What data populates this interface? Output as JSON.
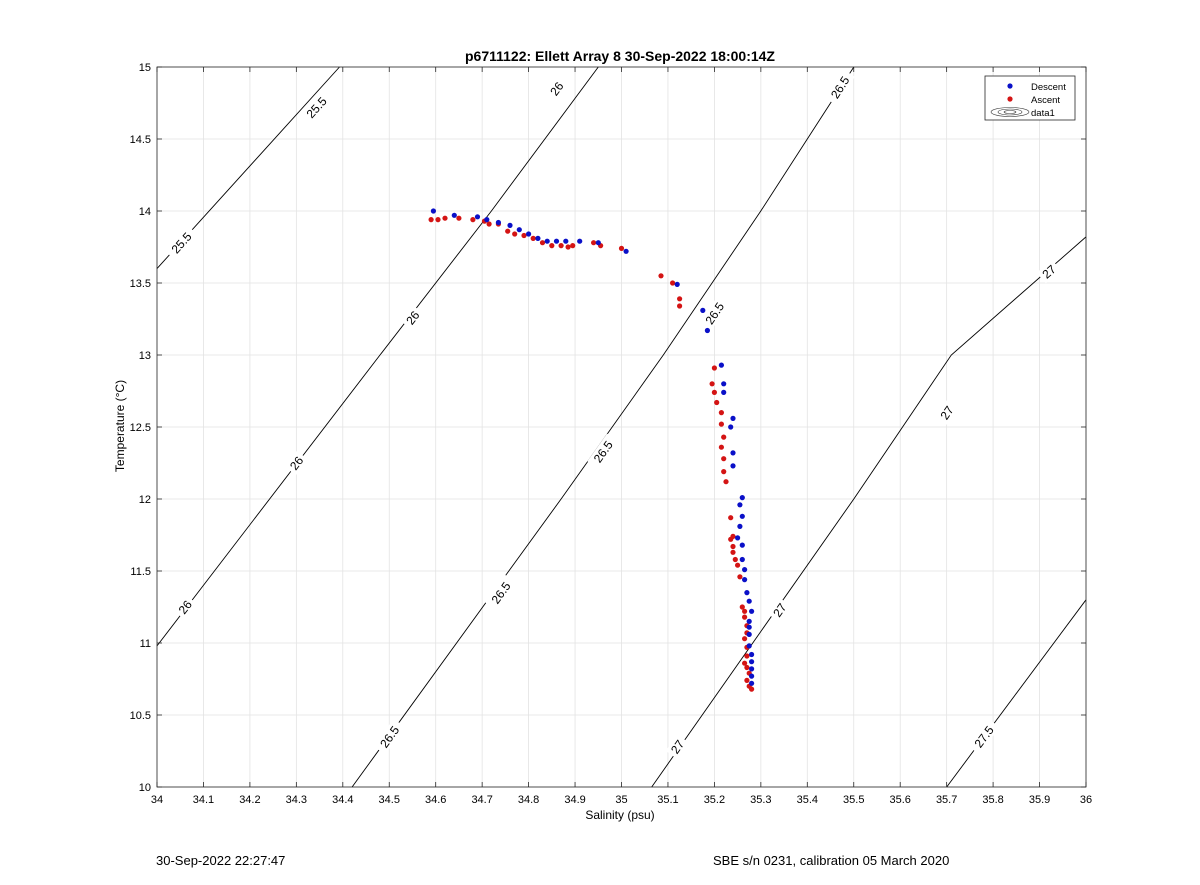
{
  "chart_data": {
    "type": "scatter",
    "title": "p6711122: Ellett Array 8 30-Sep-2022 18:00:14Z",
    "xlabel": "Salinity (psu)",
    "ylabel": "Temperature (°C)",
    "xlim": [
      34,
      36
    ],
    "ylim": [
      10,
      15
    ],
    "xticks": [
      "34",
      "34.1",
      "34.2",
      "34.3",
      "34.4",
      "34.5",
      "34.6",
      "34.7",
      "34.8",
      "34.9",
      "35",
      "35.1",
      "35.2",
      "35.3",
      "35.4",
      "35.5",
      "35.6",
      "35.7",
      "35.8",
      "35.9",
      "36"
    ],
    "yticks": [
      "10",
      "10.5",
      "11",
      "11.5",
      "12",
      "12.5",
      "13",
      "13.5",
      "14",
      "14.5",
      "15"
    ],
    "grid": true,
    "legend_position": "top-right",
    "legend": [
      "Descent",
      "Ascent",
      "data1"
    ],
    "colors": {
      "descent": "#0a10c8",
      "ascent": "#d41414",
      "contour": "#000000",
      "grid": "#e3e3e3"
    },
    "series": [
      {
        "name": "Descent",
        "points": [
          [
            34.595,
            14.0
          ],
          [
            34.64,
            13.97
          ],
          [
            34.69,
            13.96
          ],
          [
            34.71,
            13.94
          ],
          [
            34.735,
            13.92
          ],
          [
            34.76,
            13.9
          ],
          [
            34.78,
            13.87
          ],
          [
            34.8,
            13.84
          ],
          [
            34.82,
            13.81
          ],
          [
            34.84,
            13.79
          ],
          [
            34.86,
            13.79
          ],
          [
            34.88,
            13.79
          ],
          [
            34.91,
            13.79
          ],
          [
            34.95,
            13.78
          ],
          [
            35.01,
            13.72
          ],
          [
            35.12,
            13.49
          ],
          [
            35.175,
            13.31
          ],
          [
            35.185,
            13.17
          ],
          [
            35.215,
            12.93
          ],
          [
            35.22,
            12.8
          ],
          [
            35.22,
            12.74
          ],
          [
            35.24,
            12.56
          ],
          [
            35.235,
            12.5
          ],
          [
            35.24,
            12.32
          ],
          [
            35.24,
            12.23
          ],
          [
            35.26,
            12.01
          ],
          [
            35.255,
            11.96
          ],
          [
            35.26,
            11.88
          ],
          [
            35.255,
            11.81
          ],
          [
            35.25,
            11.73
          ],
          [
            35.26,
            11.68
          ],
          [
            35.26,
            11.58
          ],
          [
            35.265,
            11.51
          ],
          [
            35.265,
            11.44
          ],
          [
            35.27,
            11.35
          ],
          [
            35.275,
            11.29
          ],
          [
            35.28,
            11.22
          ],
          [
            35.275,
            11.15
          ],
          [
            35.275,
            11.11
          ],
          [
            35.275,
            11.06
          ],
          [
            35.275,
            10.98
          ],
          [
            35.28,
            10.92
          ],
          [
            35.28,
            10.87
          ],
          [
            35.28,
            10.82
          ],
          [
            35.28,
            10.77
          ],
          [
            35.28,
            10.72
          ]
        ]
      },
      {
        "name": "Ascent",
        "points": [
          [
            34.59,
            13.94
          ],
          [
            34.605,
            13.94
          ],
          [
            34.62,
            13.95
          ],
          [
            34.65,
            13.95
          ],
          [
            34.68,
            13.94
          ],
          [
            34.705,
            13.93
          ],
          [
            34.715,
            13.91
          ],
          [
            34.735,
            13.91
          ],
          [
            34.755,
            13.86
          ],
          [
            34.77,
            13.84
          ],
          [
            34.79,
            13.83
          ],
          [
            34.81,
            13.81
          ],
          [
            34.83,
            13.78
          ],
          [
            34.85,
            13.76
          ],
          [
            34.87,
            13.76
          ],
          [
            34.885,
            13.75
          ],
          [
            34.895,
            13.76
          ],
          [
            34.94,
            13.78
          ],
          [
            34.955,
            13.76
          ],
          [
            35.0,
            13.74
          ],
          [
            35.085,
            13.55
          ],
          [
            35.11,
            13.5
          ],
          [
            35.125,
            13.39
          ],
          [
            35.125,
            13.34
          ],
          [
            35.2,
            12.91
          ],
          [
            35.195,
            12.8
          ],
          [
            35.2,
            12.74
          ],
          [
            35.205,
            12.67
          ],
          [
            35.215,
            12.6
          ],
          [
            35.215,
            12.52
          ],
          [
            35.22,
            12.43
          ],
          [
            35.215,
            12.36
          ],
          [
            35.22,
            12.28
          ],
          [
            35.22,
            12.19
          ],
          [
            35.225,
            12.12
          ],
          [
            35.235,
            11.87
          ],
          [
            35.24,
            11.74
          ],
          [
            35.235,
            11.72
          ],
          [
            35.24,
            11.67
          ],
          [
            35.24,
            11.63
          ],
          [
            35.245,
            11.58
          ],
          [
            35.25,
            11.54
          ],
          [
            35.255,
            11.46
          ],
          [
            35.26,
            11.25
          ],
          [
            35.265,
            11.22
          ],
          [
            35.265,
            11.18
          ],
          [
            35.27,
            11.12
          ],
          [
            35.27,
            11.07
          ],
          [
            35.265,
            11.03
          ],
          [
            35.27,
            10.97
          ],
          [
            35.27,
            10.91
          ],
          [
            35.265,
            10.86
          ],
          [
            35.27,
            10.83
          ],
          [
            35.275,
            10.79
          ],
          [
            35.27,
            10.74
          ],
          [
            35.275,
            10.7
          ],
          [
            35.28,
            10.68
          ]
        ]
      },
      {
        "name": "data1",
        "type": "contour",
        "lines": [
          {
            "label": "25.5",
            "points": [
              [
                34.0,
                13.6
              ],
              [
                34.393,
                15.0
              ]
            ]
          },
          {
            "label": "26",
            "points": [
              [
                34.0,
                10.98
              ],
              [
                34.48,
                13.0
              ],
              [
                34.72,
                14.0
              ],
              [
                34.95,
                15.0
              ]
            ]
          },
          {
            "label": "26.5",
            "points": [
              [
                34.42,
                10.0
              ],
              [
                34.87,
                12.0
              ],
              [
                35.09,
                13.0
              ],
              [
                35.3,
                14.0
              ],
              [
                35.5,
                15.0
              ]
            ]
          },
          {
            "label": "27",
            "points": [
              [
                35.065,
                10.0
              ],
              [
                35.5,
                12.0
              ],
              [
                35.71,
                13.0
              ],
              [
                36.0,
                13.82
              ]
            ]
          },
          {
            "label": "27.5",
            "points": [
              [
                35.7,
                10.0
              ],
              [
                36.0,
                11.3
              ]
            ]
          }
        ],
        "contour_labels": [
          {
            "text": "25.5",
            "at": [
              34.343,
              14.72
            ]
          },
          {
            "text": "25.5",
            "at": [
              34.052,
              13.78
            ]
          },
          {
            "text": "26",
            "at": [
              34.86,
              14.85
            ]
          },
          {
            "text": "26",
            "at": [
              34.55,
              13.26
            ]
          },
          {
            "text": "26",
            "at": [
              34.3,
              12.25
            ]
          },
          {
            "text": "26",
            "at": [
              34.06,
              11.25
            ]
          },
          {
            "text": "26.5",
            "at": [
              35.47,
              14.86
            ]
          },
          {
            "text": "26.5",
            "at": [
              35.2,
              13.29
            ]
          },
          {
            "text": "26.5",
            "at": [
              34.96,
              12.33
            ]
          },
          {
            "text": "26.5",
            "at": [
              34.74,
              11.35
            ]
          },
          {
            "text": "26.5",
            "at": [
              34.5,
              10.35
            ]
          },
          {
            "text": "27",
            "at": [
              35.92,
              13.58
            ]
          },
          {
            "text": "27",
            "at": [
              35.7,
              12.6
            ]
          },
          {
            "text": "27",
            "at": [
              35.34,
              11.23
            ]
          },
          {
            "text": "27",
            "at": [
              35.12,
              10.28
            ]
          },
          {
            "text": "27.5",
            "at": [
              35.78,
              10.35
            ]
          }
        ]
      }
    ]
  },
  "footer": {
    "date": "30-Sep-2022 22:27:47",
    "sensor": "SBE s/n 0231, calibration 05 March 2020"
  }
}
